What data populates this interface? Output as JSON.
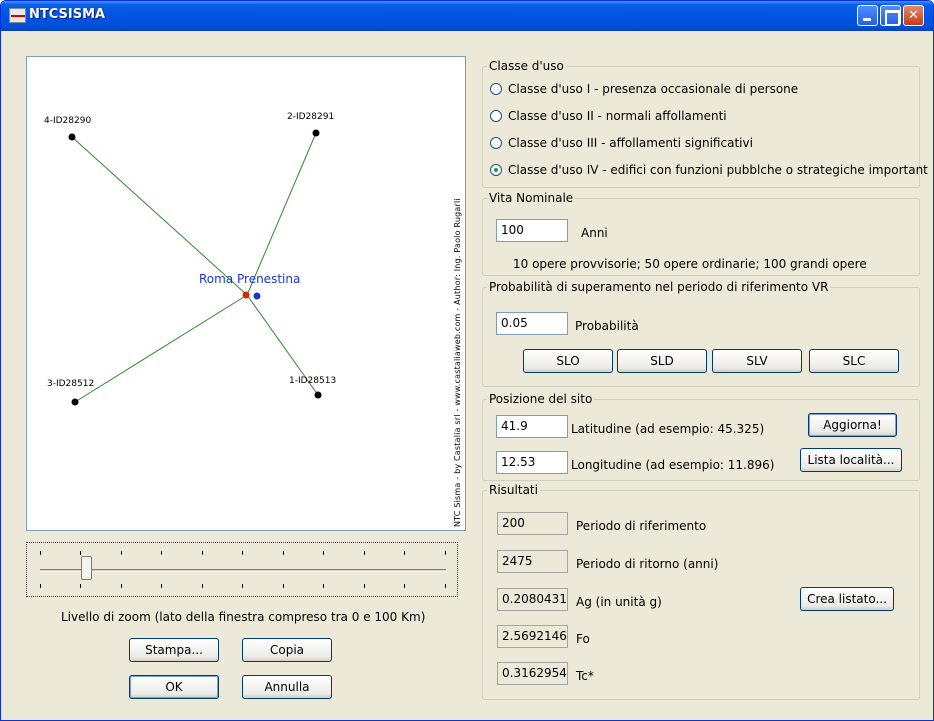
{
  "window": {
    "title": "NTCSISMA"
  },
  "map": {
    "center_label": "Roma Prenestina",
    "stations": [
      {
        "id": "4-ID28290"
      },
      {
        "id": "2-ID28291"
      },
      {
        "id": "3-ID28512"
      },
      {
        "id": "1-ID28513"
      }
    ],
    "credit": "NTC Sisma - by Castalia srl - www.castaliaweb.com - Author: Ing. Paolo Rugarli"
  },
  "zoom": {
    "label": "Livello di zoom (lato della finestra compreso tra 0 e 100 Km)"
  },
  "buttons_left": {
    "print": "Stampa...",
    "copy": "Copia",
    "ok": "OK",
    "cancel": "Annulla"
  },
  "classe_uso": {
    "title": "Classe d'uso",
    "options": [
      {
        "label": "Classe d'uso I - presenza occasionale di persone",
        "checked": false
      },
      {
        "label": "Classe d'uso II - normali affollamenti",
        "checked": false
      },
      {
        "label": "Classe d'uso III - affollamenti significativi",
        "checked": false
      },
      {
        "label": "Classe d'uso IV - edifici con funzioni pubblche o strategiche important",
        "checked": true
      }
    ]
  },
  "vita": {
    "title": "Vita Nominale",
    "value": "100",
    "unit": "Anni",
    "note": "10 opere provvisorie; 50 opere ordinarie; 100 grandi opere"
  },
  "probabilita": {
    "title": "Probabilità di superamento nel periodo di riferimento VR",
    "value": "0.05",
    "label": "Probabilità",
    "buttons": [
      "SLO",
      "SLD",
      "SLV",
      "SLC"
    ]
  },
  "posizione": {
    "title": "Posizione del sito",
    "lat_value": "41.9",
    "lat_label": "Latitudine (ad esempio: 45.325)",
    "lon_value": "12.53",
    "lon_label": "Longitudine (ad esempio: 11.896)",
    "update_button": "Aggiorna!",
    "list_button": "Lista località..."
  },
  "risultati": {
    "title": "Risultati",
    "rows": [
      {
        "value": "200",
        "label": "Periodo di riferimento"
      },
      {
        "value": "2475",
        "label": "Periodo di ritorno (anni)"
      },
      {
        "value": "0.2080431",
        "label": "Ag (in unità g)"
      },
      {
        "value": "2.5692146",
        "label": "Fo"
      },
      {
        "value": "0.3162954",
        "label": "Tc*"
      }
    ],
    "list_button": "Crea listato..."
  }
}
